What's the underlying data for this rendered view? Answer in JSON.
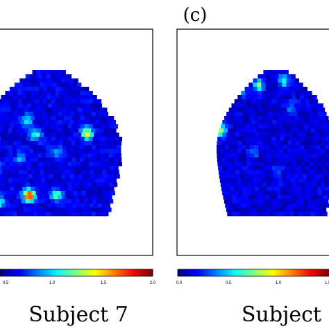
{
  "panel_label": "(c)",
  "colormap": [
    "#00007f",
    "#0000ff",
    "#007fff",
    "#00ffff",
    "#7fff7f",
    "#ffff00",
    "#ff7f00",
    "#ff0000",
    "#7f0000"
  ],
  "chart_data": [
    {
      "type": "heatmap",
      "title": "Subject 7",
      "colorbar": {
        "ticks": [
          "0.5",
          "1.0",
          "1.5",
          "2.0"
        ],
        "range": [
          0,
          2.0
        ]
      },
      "background_value": 0.2,
      "hotspots": [
        {
          "gx": 0.05,
          "gy": 0.38,
          "value": 1.0
        },
        {
          "gx": 0.76,
          "gy": 0.42,
          "value": 1.25
        },
        {
          "gx": 0.41,
          "gy": 0.43,
          "value": 0.85
        },
        {
          "gx": 0.35,
          "gy": 0.33,
          "value": 0.7
        },
        {
          "gx": 0.3,
          "gy": 0.6,
          "value": 0.55
        },
        {
          "gx": 0.55,
          "gy": 0.55,
          "value": 0.6
        },
        {
          "gx": 0.36,
          "gy": 0.85,
          "value": 1.8
        },
        {
          "gx": 0.15,
          "gy": 0.9,
          "value": 0.8
        },
        {
          "gx": 0.55,
          "gy": 0.85,
          "value": 1.0
        },
        {
          "gx": 0.12,
          "gy": 0.65,
          "value": 0.65
        }
      ]
    },
    {
      "type": "heatmap",
      "title": "Subject",
      "colorbar": {
        "ticks": [
          "0.0",
          "0.5",
          "1.0",
          "1.5"
        ],
        "range": [
          0,
          2.0
        ]
      },
      "background_value": 0.18,
      "hotspots": [
        {
          "gx": 0.34,
          "gy": 0.09,
          "value": 1.05
        },
        {
          "gx": 0.55,
          "gy": 0.06,
          "value": 0.85
        },
        {
          "gx": 0.2,
          "gy": 0.12,
          "value": 0.65
        },
        {
          "gx": 0.02,
          "gy": 0.41,
          "value": 1.15
        },
        {
          "gx": 0.62,
          "gy": 0.25,
          "value": 0.55
        },
        {
          "gx": 0.3,
          "gy": 0.55,
          "value": 0.5
        },
        {
          "gx": 0.5,
          "gy": 0.7,
          "value": 0.45
        }
      ]
    }
  ]
}
